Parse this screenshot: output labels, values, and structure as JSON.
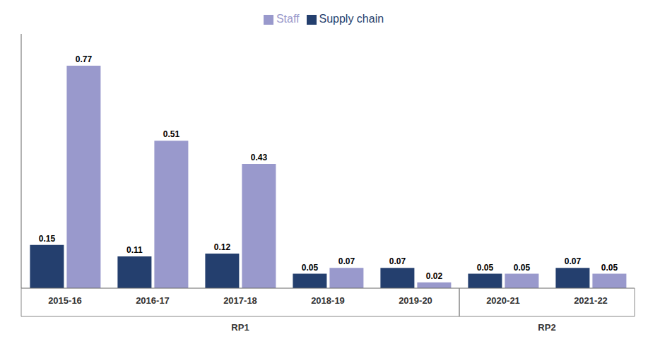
{
  "chart_data": {
    "type": "bar",
    "categories": [
      "2015-16",
      "2016-17",
      "2017-18",
      "2018-19",
      "2019-20",
      "2020-21",
      "2021-22"
    ],
    "series": [
      {
        "name": "Supply chain",
        "color": "#243f6e",
        "values": [
          0.15,
          0.11,
          0.12,
          0.05,
          0.07,
          0.05,
          0.07
        ]
      },
      {
        "name": "Staff",
        "color": "#9999cc",
        "values": [
          0.77,
          0.51,
          0.43,
          0.07,
          0.02,
          0.05,
          0.05
        ]
      }
    ],
    "ylim": [
      0,
      0.88
    ],
    "data_labels": true,
    "tick_labels": "x",
    "legend": "top",
    "grid": false,
    "annotations": [
      {
        "text": "RP1",
        "from": "2015-16",
        "to": "2019-20"
      },
      {
        "text": "RP2",
        "from": "2020-21",
        "to": "2021-22"
      }
    ]
  }
}
